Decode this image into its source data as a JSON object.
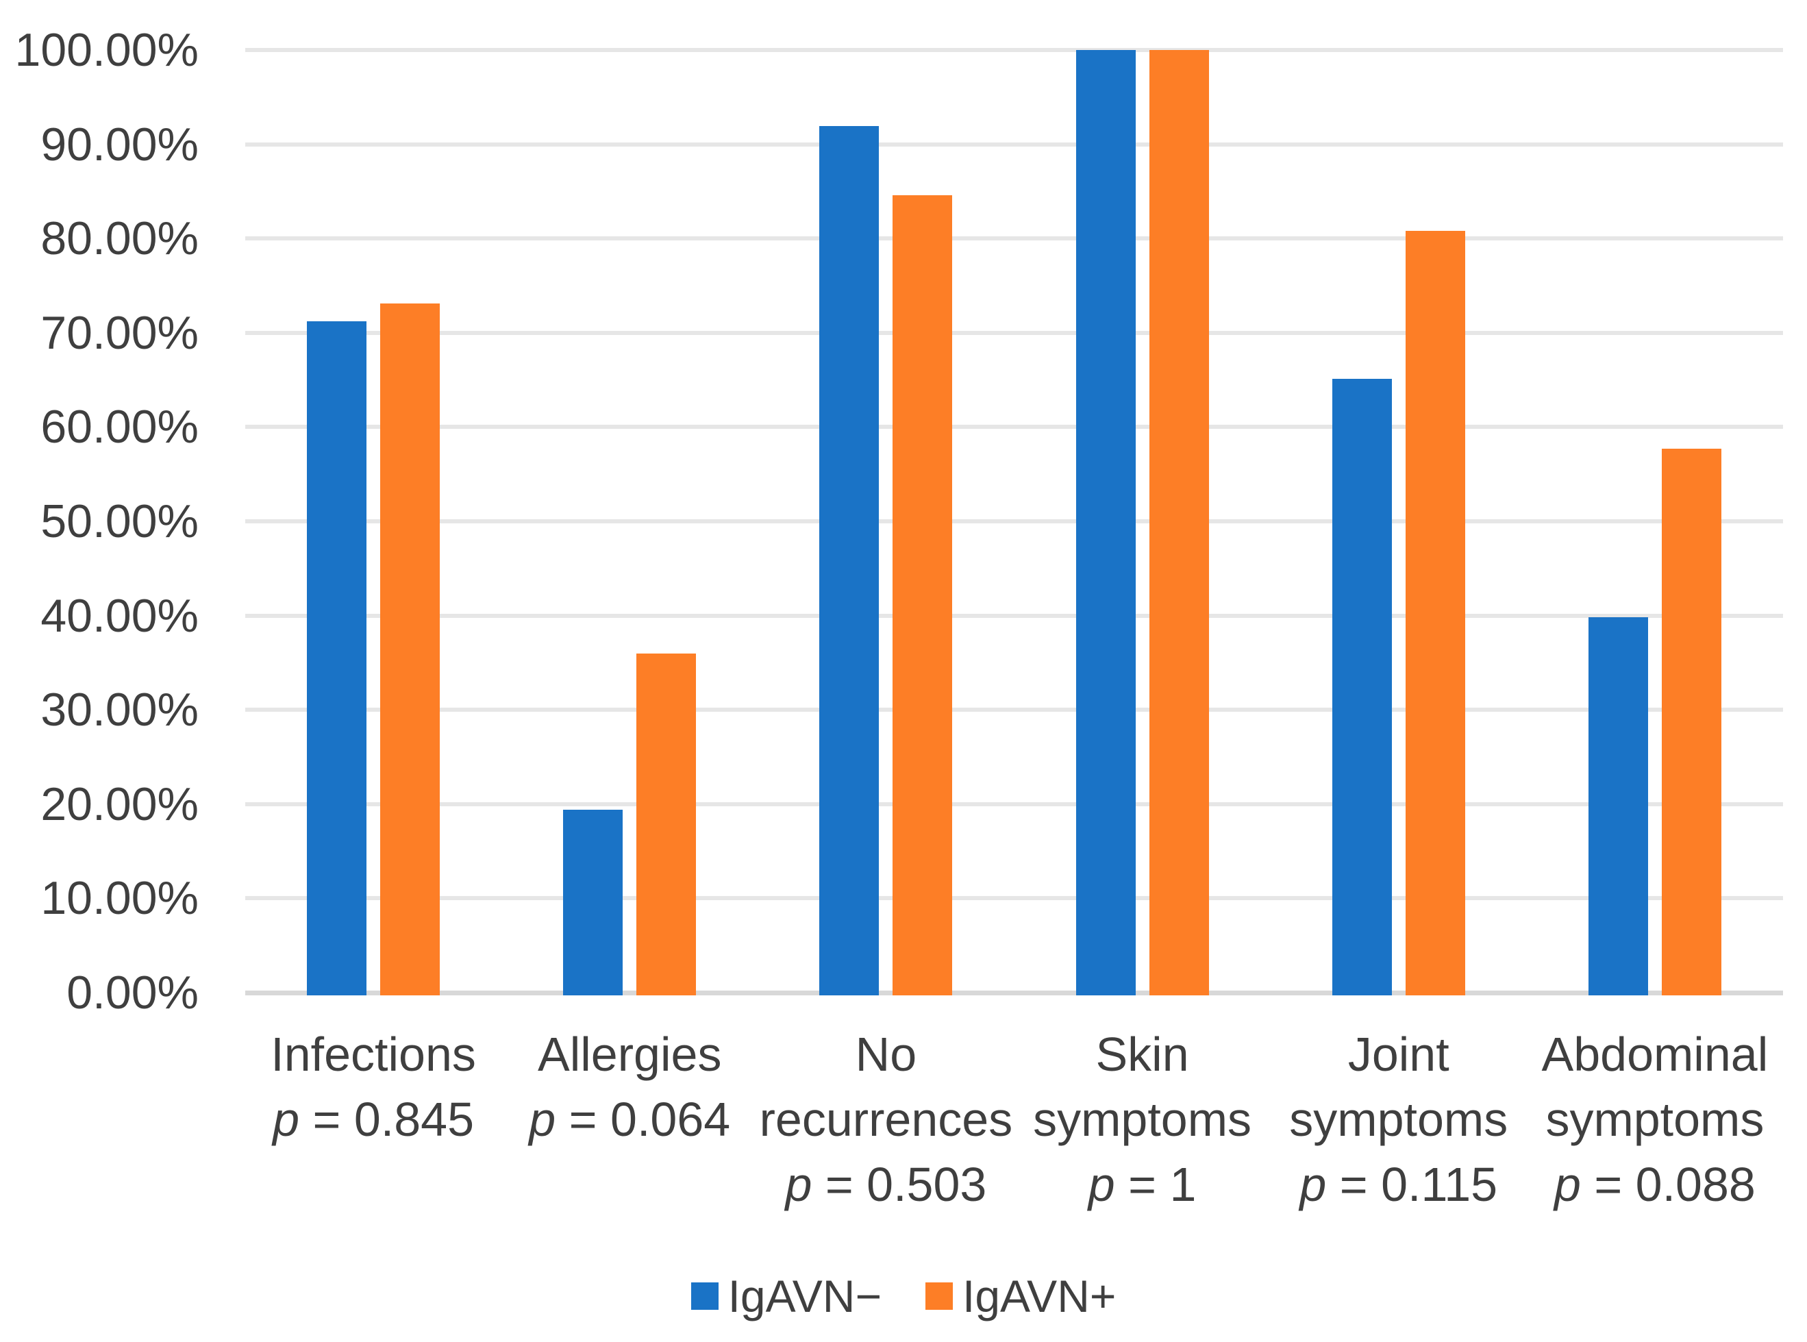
{
  "chart_data": {
    "type": "bar",
    "title": "",
    "xlabel": "",
    "ylabel": "",
    "grid": true,
    "legend_position": "bottom",
    "categories": [
      {
        "lines": [
          "Infections"
        ],
        "p_line": "p = 0.845"
      },
      {
        "lines": [
          "Allergies"
        ],
        "p_line": "p = 0.064"
      },
      {
        "lines": [
          "No",
          "recurrences"
        ],
        "p_line": "p = 0.503"
      },
      {
        "lines": [
          "Skin",
          "symptoms"
        ],
        "p_line": "p = 1"
      },
      {
        "lines": [
          "Joint",
          "symptoms"
        ],
        "p_line": "p = 0.115"
      },
      {
        "lines": [
          "Abdominal",
          "symptoms"
        ],
        "p_line": "p = 0.088"
      }
    ],
    "series": [
      {
        "name": "IgAVN−",
        "color": "#1A73C6",
        "values": [
          71.2,
          19.4,
          91.9,
          100,
          65.1,
          39.8
        ]
      },
      {
        "name": "IgAVN+",
        "color": "#FD7E26",
        "values": [
          73.1,
          36.0,
          84.6,
          100,
          80.8,
          57.7
        ]
      }
    ],
    "y_axis": {
      "min": 0,
      "max": 100,
      "step": 10,
      "unit": "%",
      "tick_labels": [
        "0.00%",
        "10.00%",
        "20.00%",
        "30.00%",
        "40.00%",
        "50.00%",
        "60.00%",
        "70.00%",
        "80.00%",
        "90.00%",
        "100.00%"
      ]
    },
    "colors": {
      "gridline": "#E6E6E6",
      "axis_line": "#D8D8D8",
      "text": "#3F3F3F",
      "background": "#FFFFFF"
    }
  }
}
